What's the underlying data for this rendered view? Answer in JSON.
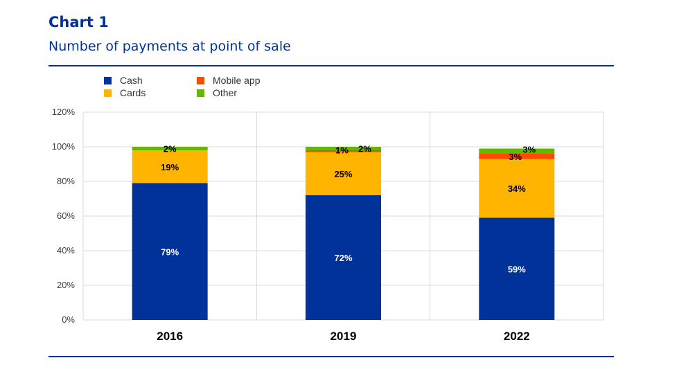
{
  "header": {
    "title": "Chart 1",
    "subtitle": "Number of payments at point of sale"
  },
  "colors": {
    "brand": "#003299",
    "Cash": "#003299",
    "Cards": "#FFB400",
    "Mobile app": "#FF4B00",
    "Other": "#65B800",
    "grid": "#d9d9d9"
  },
  "chart_data": {
    "type": "bar",
    "stacked": true,
    "categories": [
      "2016",
      "2019",
      "2022"
    ],
    "series": [
      {
        "name": "Cash",
        "values": [
          79,
          72,
          59
        ],
        "labels": [
          "79%",
          "72%",
          "59%"
        ]
      },
      {
        "name": "Cards",
        "values": [
          19,
          25,
          34
        ],
        "labels": [
          "19%",
          "25%",
          "34%"
        ]
      },
      {
        "name": "Mobile app",
        "values": [
          0,
          1,
          3
        ],
        "labels": [
          "",
          "1%",
          "3%"
        ]
      },
      {
        "name": "Other",
        "values": [
          2,
          2,
          3
        ],
        "labels": [
          "2%",
          "2%",
          "3%"
        ]
      }
    ],
    "ylim": [
      0,
      120
    ],
    "yticks": [
      "0%",
      "20%",
      "40%",
      "60%",
      "80%",
      "100%",
      "120%"
    ],
    "grid": true,
    "legend_position": "top-left"
  }
}
